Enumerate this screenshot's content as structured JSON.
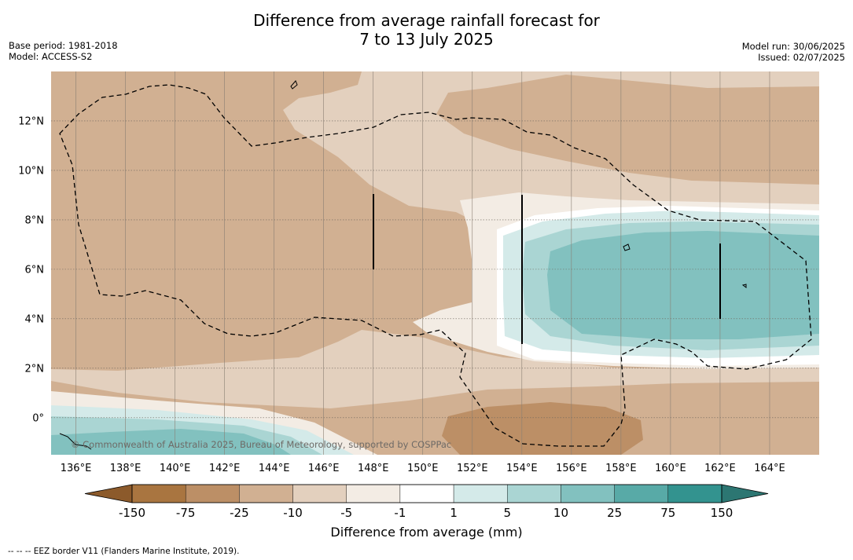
{
  "header": {
    "title_line1": "Difference from average rainfall forecast for",
    "title_line2": "7 to 13 July 2025",
    "base_period": "Base period: 1981-2018",
    "model": "Model: ACCESS-S2",
    "model_run": "Model run: 30/06/2025",
    "issued": "Issued: 02/07/2025"
  },
  "map": {
    "lon_ticks": [
      "136°E",
      "138°E",
      "140°E",
      "142°E",
      "144°E",
      "146°E",
      "148°E",
      "150°E",
      "152°E",
      "154°E",
      "156°E",
      "158°E",
      "160°E",
      "162°E",
      "164°E"
    ],
    "lat_ticks": [
      "12°N",
      "10°N",
      "8°N",
      "6°N",
      "4°N",
      "2°N",
      "0°"
    ],
    "copyright": "© Commonwealth of Australia 2025, Bureau of Meteorology, supported by COSPPac",
    "extent": {
      "lon_min": 135.0,
      "lon_max": 166.0,
      "lat_min": -1.5,
      "lat_max": 14.0
    }
  },
  "colorbar": {
    "title": "Difference from average (mm)",
    "labels": [
      "-150",
      "-75",
      "-25",
      "-10",
      "-5",
      "-1",
      "1",
      "5",
      "10",
      "25",
      "75",
      "150"
    ],
    "colors": [
      "#8c5a2b",
      "#a97540",
      "#bc8f66",
      "#d1b092",
      "#e3d0be",
      "#f3ece4",
      "#ffffff",
      "#d4eae9",
      "#aad5d3",
      "#82c1bf",
      "#58aaa7",
      "#33938f",
      "#2c7672"
    ]
  },
  "footnote": "-- -- -- EEZ border V11 (Flanders Marine Institute, 2019)."
}
